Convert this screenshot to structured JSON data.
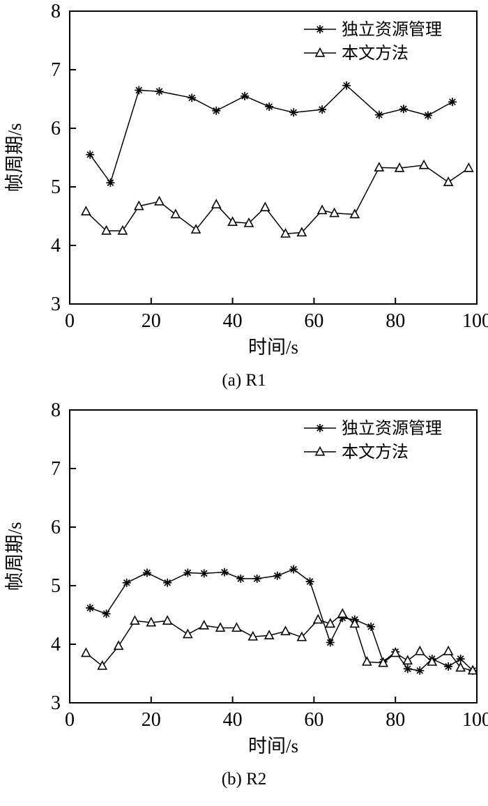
{
  "page": {
    "background": "#ffffff",
    "line_color": "#000000"
  },
  "chart_data": [
    {
      "type": "line",
      "caption": "(a) R1",
      "xlabel": "时间/s",
      "ylabel": "帧周期/s",
      "xlim": [
        0,
        100
      ],
      "ylim": [
        3,
        8
      ],
      "xticks": [
        0,
        20,
        40,
        60,
        80,
        100
      ],
      "yticks": [
        3,
        4,
        5,
        6,
        7,
        8
      ],
      "grid": false,
      "legend_position": "top-right",
      "series": [
        {
          "name": "独立资源管理",
          "marker": "asterisk",
          "color": "#000000",
          "x": [
            5,
            10,
            17,
            22,
            30,
            36,
            43,
            49,
            55,
            62,
            68,
            76,
            82,
            88,
            94
          ],
          "y": [
            5.55,
            5.07,
            6.65,
            6.63,
            6.52,
            6.3,
            6.55,
            6.37,
            6.27,
            6.32,
            6.73,
            6.23,
            6.33,
            6.22,
            6.45
          ]
        },
        {
          "name": "本文方法",
          "marker": "triangle",
          "color": "#000000",
          "x": [
            4,
            9,
            13,
            17,
            22,
            26,
            31,
            36,
            40,
            44,
            48,
            53,
            57,
            62,
            65,
            70,
            76,
            81,
            87,
            93,
            98
          ],
          "y": [
            4.58,
            4.25,
            4.25,
            4.67,
            4.75,
            4.53,
            4.27,
            4.7,
            4.4,
            4.38,
            4.65,
            4.2,
            4.22,
            4.6,
            4.55,
            4.53,
            5.33,
            5.32,
            5.37,
            5.08,
            5.32
          ]
        }
      ]
    },
    {
      "type": "line",
      "caption": "(b) R2",
      "xlabel": "时间/s",
      "ylabel": "帧周期/s",
      "xlim": [
        0,
        100
      ],
      "ylim": [
        3,
        8
      ],
      "xticks": [
        0,
        20,
        40,
        60,
        80,
        100
      ],
      "yticks": [
        3,
        4,
        5,
        6,
        7,
        8
      ],
      "grid": false,
      "legend_position": "top-right",
      "series": [
        {
          "name": "独立资源管理",
          "marker": "asterisk",
          "color": "#000000",
          "x": [
            5,
            9,
            14,
            19,
            24,
            29,
            33,
            38,
            42,
            46,
            51,
            55,
            59,
            64,
            67,
            70,
            74,
            77,
            80,
            83,
            86,
            89,
            93,
            96,
            99
          ],
          "y": [
            4.62,
            4.52,
            5.05,
            5.22,
            5.05,
            5.22,
            5.21,
            5.23,
            5.12,
            5.12,
            5.17,
            5.28,
            5.07,
            4.03,
            4.45,
            4.42,
            4.3,
            3.7,
            3.87,
            3.58,
            3.55,
            3.75,
            3.62,
            3.75,
            3.55
          ]
        },
        {
          "name": "本文方法",
          "marker": "triangle",
          "color": "#000000",
          "x": [
            4,
            8,
            12,
            16,
            20,
            24,
            29,
            33,
            37,
            41,
            45,
            49,
            53,
            57,
            61,
            64,
            67,
            70,
            73,
            77,
            80,
            83,
            86,
            89,
            93,
            96,
            99
          ],
          "y": [
            3.85,
            3.63,
            3.97,
            4.4,
            4.37,
            4.4,
            4.17,
            4.32,
            4.28,
            4.28,
            4.13,
            4.15,
            4.22,
            4.12,
            4.42,
            4.35,
            4.52,
            4.35,
            3.7,
            3.68,
            3.85,
            3.72,
            3.88,
            3.7,
            3.88,
            3.6,
            3.55
          ]
        }
      ]
    }
  ]
}
